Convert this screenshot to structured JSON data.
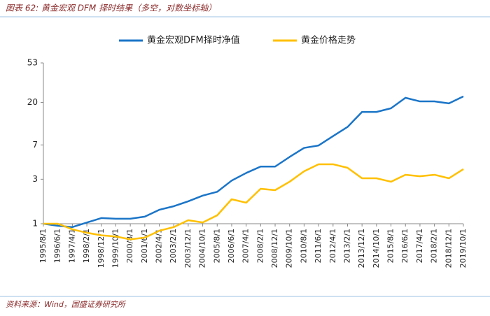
{
  "chart_data": {
    "type": "line",
    "title": "图表 62:  黄金宏观 DFM 择时结果（多空，对数坐标轴）",
    "source": "资料来源：Wind，国盛证券研究所",
    "x": [
      "1995/8/1",
      "1996/6/1",
      "1997/4/1",
      "1998/2/1",
      "1998/12/1",
      "1999/10/1",
      "2000/8/1",
      "2001/6/1",
      "2002/4/1",
      "2003/2/1",
      "2003/12/1",
      "2004/10/1",
      "2005/8/1",
      "2006/6/1",
      "2007/4/1",
      "2008/2/1",
      "2008/12/1",
      "2009/10/1",
      "2010/8/1",
      "2011/6/1",
      "2012/4/1",
      "2013/2/1",
      "2013/12/1",
      "2014/10/1",
      "2015/8/1",
      "2016/6/1",
      "2017/4/1",
      "2018/2/1",
      "2018/12/1",
      "2019/10/1"
    ],
    "series": [
      {
        "name": "黄金宏观DFM择时净值",
        "color": "#1b75c8",
        "values": [
          1.0,
          0.95,
          0.92,
          1.03,
          1.15,
          1.13,
          1.13,
          1.19,
          1.41,
          1.54,
          1.74,
          2.0,
          2.2,
          2.9,
          3.5,
          4.1,
          4.1,
          5.2,
          6.5,
          6.9,
          8.7,
          10.9,
          15.8,
          15.8,
          17.3,
          22.4,
          20.5,
          20.5,
          19.5,
          23.2
        ]
      },
      {
        "name": "黄金价格走势",
        "color": "#ffc000",
        "values": [
          1.0,
          1.0,
          0.87,
          0.8,
          0.75,
          0.73,
          0.68,
          0.71,
          0.84,
          0.92,
          1.09,
          1.03,
          1.23,
          1.83,
          1.68,
          2.37,
          2.29,
          2.82,
          3.65,
          4.34,
          4.34,
          3.98,
          3.07,
          3.07,
          2.82,
          3.35,
          3.23,
          3.35,
          3.07,
          3.85
        ]
      }
    ],
    "ylim": [
      1,
      53
    ],
    "yticks": [
      1,
      3,
      7,
      20,
      53
    ],
    "log_scale": true,
    "grid": false
  }
}
